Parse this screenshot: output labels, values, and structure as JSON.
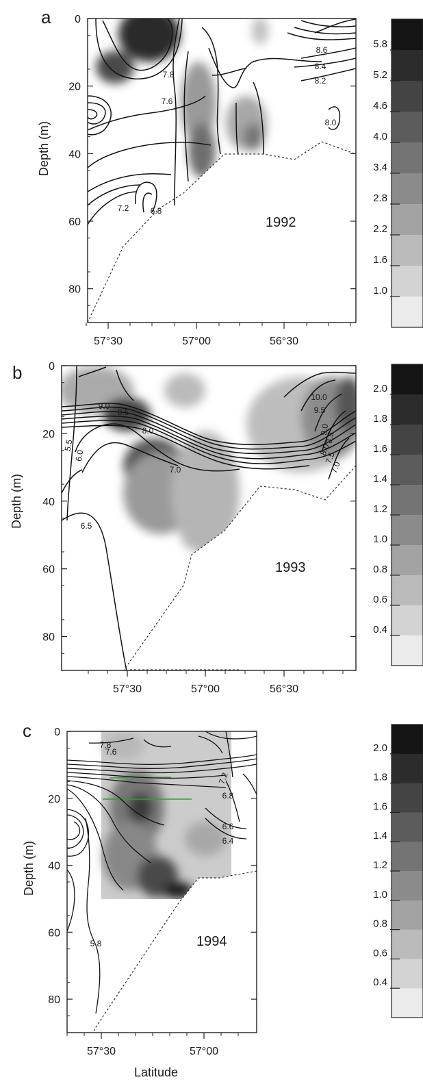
{
  "chart_data": [
    {
      "type": "heatmap",
      "panel_letter": "a",
      "year_label": "1992",
      "ylabel": "Depth (m)",
      "xlabel": "",
      "y_ticks": [
        "0",
        "20",
        "40",
        "60",
        "80"
      ],
      "x_ticks": [
        "57°30",
        "57°00",
        "56°30"
      ],
      "ylim": [
        0,
        90
      ],
      "xlim": [
        57.75,
        56.25
      ],
      "y_reversed": true,
      "colorbar_labels": [
        "5.8",
        "5.2",
        "4.6",
        "4.0",
        "3.4",
        "2.8",
        "2.2",
        "1.6",
        "1.0"
      ],
      "colorbar_range": [
        1.0,
        6.4
      ],
      "contour_labels": [
        "7.8",
        "7.6",
        "8.6",
        "8.4",
        "8.2",
        "8.0",
        "7.2",
        "6.8"
      ]
    },
    {
      "type": "heatmap",
      "panel_letter": "b",
      "year_label": "1993",
      "ylabel": "Depth (m)",
      "xlabel": "",
      "y_ticks": [
        "0",
        "20",
        "40",
        "60",
        "80"
      ],
      "x_ticks": [
        "57°30",
        "57°00",
        "56°30"
      ],
      "ylim": [
        0,
        90
      ],
      "xlim": [
        57.75,
        56.25
      ],
      "y_reversed": true,
      "colorbar_labels": [
        "2.0",
        "1.8",
        "1.6",
        "1.4",
        "1.2",
        "1.0",
        "0.8",
        "0.6",
        "0.4"
      ],
      "colorbar_range": [
        0.4,
        2.2
      ],
      "contour_labels": [
        "9.0",
        "8.5",
        "8.0",
        "5.5",
        "6.0",
        "7.0",
        "10.0",
        "9.5",
        "9.0",
        "8.5",
        "8.0",
        "7.5",
        "7.0",
        "6.5"
      ]
    },
    {
      "type": "heatmap",
      "panel_letter": "c",
      "year_label": "1994",
      "ylabel": "Depth (m)",
      "xlabel": "Latitude",
      "y_ticks": [
        "0",
        "20",
        "40",
        "60",
        "80"
      ],
      "x_ticks": [
        "57°30",
        "57°00"
      ],
      "ylim": [
        0,
        90
      ],
      "xlim": [
        57.6,
        56.85
      ],
      "y_reversed": true,
      "colorbar_labels": [
        "2.0",
        "1.8",
        "1.6",
        "1.4",
        "1.2",
        "1.0",
        "0.8",
        "0.6",
        "0.4"
      ],
      "colorbar_range": [
        0.4,
        2.2
      ],
      "contour_labels": [
        "7.8",
        "7.6",
        "7.2",
        "6.8",
        "6.6",
        "6.4",
        "5.8"
      ]
    }
  ]
}
